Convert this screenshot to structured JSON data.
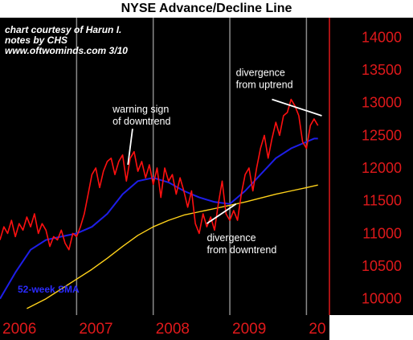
{
  "chart_data": {
    "type": "line",
    "title": "NYSE Advance/Decline Line",
    "credit_lines": [
      "chart courtesy of Harun I.",
      "notes by CHS",
      "www.oftwominds.com  3/10"
    ],
    "y_ticks": [
      "10000",
      "10500",
      "11000",
      "11500",
      "12000",
      "12500",
      "13000",
      "13500",
      "14000"
    ],
    "ylim": [
      9750,
      14300
    ],
    "x_labels": [
      "2006",
      "2007",
      "2008",
      "2009",
      "20"
    ],
    "xlim": [
      2006.0,
      2010.3
    ],
    "grid": "vertical year dividers",
    "series": [
      {
        "name": "",
        "color": "#ff1010",
        "x": [
          2006.0,
          2006.05,
          2006.1,
          2006.15,
          2006.2,
          2006.25,
          2006.3,
          2006.35,
          2006.4,
          2006.45,
          2006.5,
          2006.55,
          2006.6,
          2006.65,
          2006.7,
          2006.75,
          2006.8,
          2006.85,
          2006.9,
          2006.95,
          2007.0,
          2007.05,
          2007.1,
          2007.15,
          2007.2,
          2007.25,
          2007.3,
          2007.35,
          2007.4,
          2007.45,
          2007.5,
          2007.55,
          2007.6,
          2007.65,
          2007.7,
          2007.75,
          2007.8,
          2007.85,
          2007.9,
          2007.95,
          2008.0,
          2008.05,
          2008.1,
          2008.15,
          2008.2,
          2008.25,
          2008.3,
          2008.35,
          2008.4,
          2008.45,
          2008.5,
          2008.55,
          2008.6,
          2008.65,
          2008.7,
          2008.75,
          2008.8,
          2008.85,
          2008.9,
          2008.95,
          2009.0,
          2009.05,
          2009.1,
          2009.15,
          2009.2,
          2009.25,
          2009.3,
          2009.35,
          2009.4,
          2009.45,
          2009.5,
          2009.55,
          2009.6,
          2009.65,
          2009.7,
          2009.75,
          2009.8,
          2009.85,
          2009.9,
          2009.95,
          2010.0,
          2010.05,
          2010.1,
          2010.15
        ],
        "values": [
          10900,
          11100,
          11000,
          11200,
          10950,
          11150,
          11050,
          11250,
          11100,
          11300,
          11000,
          11150,
          11050,
          10800,
          10950,
          10900,
          11050,
          10850,
          10750,
          11000,
          10950,
          11100,
          11300,
          11600,
          11900,
          12000,
          11700,
          11950,
          12100,
          12150,
          11900,
          12100,
          12200,
          11800,
          12150,
          12250,
          11950,
          12100,
          11850,
          12050,
          11750,
          12000,
          11550,
          12000,
          11800,
          11900,
          11600,
          11850,
          11650,
          11400,
          11650,
          11150,
          11000,
          11300,
          11100,
          11250,
          11050,
          11450,
          11800,
          11300,
          11200,
          11350,
          11200,
          11600,
          11900,
          12000,
          11650,
          12000,
          12300,
          12500,
          12150,
          12450,
          12700,
          12500,
          12800,
          12850,
          13050,
          12950,
          12800,
          12400,
          12300,
          12650,
          12750,
          12650
        ]
      },
      {
        "name": "52-week SMA",
        "color": "#1e1ee8",
        "x": [
          2006.0,
          2006.2,
          2006.4,
          2006.6,
          2006.8,
          2007.0,
          2007.2,
          2007.4,
          2007.6,
          2007.8,
          2008.0,
          2008.2,
          2008.4,
          2008.6,
          2008.8,
          2009.0,
          2009.2,
          2009.4,
          2009.6,
          2009.8,
          2010.0,
          2010.1,
          2010.15
        ],
        "values": [
          10000,
          10400,
          10750,
          10900,
          10950,
          11000,
          11100,
          11300,
          11600,
          11800,
          11850,
          11780,
          11650,
          11550,
          11480,
          11450,
          11650,
          11900,
          12150,
          12300,
          12400,
          12450,
          12450
        ]
      },
      {
        "name": "",
        "color": "#ffd21a",
        "x": [
          2006.35,
          2006.6,
          2006.8,
          2007.0,
          2007.2,
          2007.4,
          2007.6,
          2007.8,
          2008.0,
          2008.2,
          2008.4,
          2008.6,
          2008.8,
          2009.0,
          2009.2,
          2009.4,
          2009.6,
          2009.8,
          2010.0,
          2010.15
        ],
        "values": [
          9850,
          10000,
          10150,
          10300,
          10450,
          10620,
          10800,
          10970,
          11100,
          11200,
          11280,
          11330,
          11380,
          11430,
          11480,
          11540,
          11600,
          11650,
          11700,
          11740
        ]
      }
    ],
    "annotations": [
      {
        "lines": [
          "divergence",
          "from uptrend"
        ],
        "anchor": [
          2009.08,
          13410
        ]
      },
      {
        "lines": [
          "warning sign",
          "of downtrend"
        ],
        "anchor": [
          2007.47,
          12850
        ]
      },
      {
        "lines": [
          "divergence",
          "from downtrend"
        ],
        "anchor": [
          2008.7,
          10880
        ]
      }
    ],
    "annotation_segments": [
      {
        "from": [
          2009.55,
          13050
        ],
        "to": [
          2010.2,
          12800
        ]
      },
      {
        "from": [
          2007.73,
          12600
        ],
        "to": [
          2007.67,
          12050
        ]
      },
      {
        "from": [
          2008.7,
          11150
        ],
        "to": [
          2009.08,
          11450
        ]
      }
    ],
    "legend_label": "52-week SMA"
  }
}
